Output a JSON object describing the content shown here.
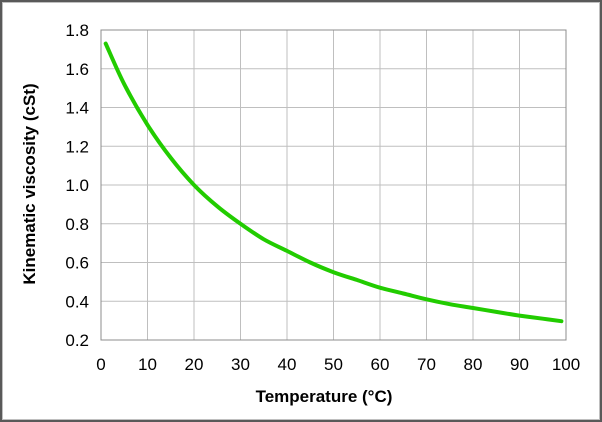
{
  "chart_data": {
    "type": "line",
    "title": "",
    "xlabel": "Temperature  (°C)",
    "ylabel": "Kinematic viscosity (cSt)",
    "xlim": [
      0,
      100
    ],
    "ylim": [
      0.2,
      1.8
    ],
    "x_ticks": [
      "0",
      "10",
      "20",
      "30",
      "40",
      "50",
      "60",
      "70",
      "80",
      "90",
      "100"
    ],
    "y_ticks": [
      "0.2",
      "0.4",
      "0.6",
      "0.8",
      "1.0",
      "1.2",
      "1.4",
      "1.6",
      "1.8"
    ],
    "grid": true,
    "legend": "none",
    "line_color": "#22cc00",
    "series": [
      {
        "x": [
          1,
          5,
          10,
          15,
          20,
          25,
          30,
          35,
          40,
          45,
          50,
          55,
          60,
          65,
          70,
          75,
          80,
          85,
          90,
          95,
          99
        ],
        "values": [
          1.73,
          1.52,
          1.31,
          1.14,
          1.0,
          0.89,
          0.8,
          0.72,
          0.66,
          0.6,
          0.55,
          0.51,
          0.47,
          0.44,
          0.41,
          0.385,
          0.365,
          0.345,
          0.326,
          0.31,
          0.297
        ]
      }
    ]
  }
}
